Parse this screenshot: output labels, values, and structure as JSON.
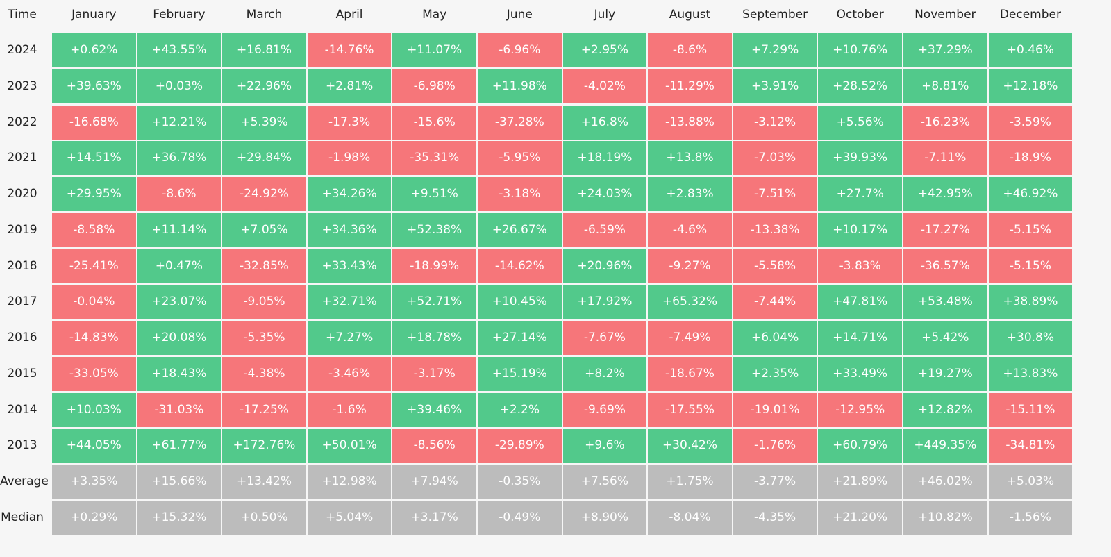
{
  "table": {
    "columns": [
      "Time",
      "January",
      "February",
      "March",
      "April",
      "May",
      "June",
      "July",
      "August",
      "September",
      "October",
      "November",
      "December"
    ],
    "colors": {
      "positive": "#52c98b",
      "negative": "#f6767a",
      "summary": "#bcbcbc"
    },
    "rows": [
      {
        "label": "2024",
        "cells": [
          "+0.62%",
          "+43.55%",
          "+16.81%",
          "-14.76%",
          "+11.07%",
          "-6.96%",
          "+2.95%",
          "-8.6%",
          "+7.29%",
          "+10.76%",
          "+37.29%",
          "+0.46%"
        ]
      },
      {
        "label": "2023",
        "cells": [
          "+39.63%",
          "+0.03%",
          "+22.96%",
          "+2.81%",
          "-6.98%",
          "+11.98%",
          "-4.02%",
          "-11.29%",
          "+3.91%",
          "+28.52%",
          "+8.81%",
          "+12.18%"
        ]
      },
      {
        "label": "2022",
        "cells": [
          "-16.68%",
          "+12.21%",
          "+5.39%",
          "-17.3%",
          "-15.6%",
          "-37.28%",
          "+16.8%",
          "-13.88%",
          "-3.12%",
          "+5.56%",
          "-16.23%",
          "-3.59%"
        ]
      },
      {
        "label": "2021",
        "cells": [
          "+14.51%",
          "+36.78%",
          "+29.84%",
          "-1.98%",
          "-35.31%",
          "-5.95%",
          "+18.19%",
          "+13.8%",
          "-7.03%",
          "+39.93%",
          "-7.11%",
          "-18.9%"
        ]
      },
      {
        "label": "2020",
        "cells": [
          "+29.95%",
          "-8.6%",
          "-24.92%",
          "+34.26%",
          "+9.51%",
          "-3.18%",
          "+24.03%",
          "+2.83%",
          "-7.51%",
          "+27.7%",
          "+42.95%",
          "+46.92%"
        ]
      },
      {
        "label": "2019",
        "cells": [
          "-8.58%",
          "+11.14%",
          "+7.05%",
          "+34.36%",
          "+52.38%",
          "+26.67%",
          "-6.59%",
          "-4.6%",
          "-13.38%",
          "+10.17%",
          "-17.27%",
          "-5.15%"
        ]
      },
      {
        "label": "2018",
        "cells": [
          "-25.41%",
          "+0.47%",
          "-32.85%",
          "+33.43%",
          "-18.99%",
          "-14.62%",
          "+20.96%",
          "-9.27%",
          "-5.58%",
          "-3.83%",
          "-36.57%",
          "-5.15%"
        ]
      },
      {
        "label": "2017",
        "cells": [
          "-0.04%",
          "+23.07%",
          "-9.05%",
          "+32.71%",
          "+52.71%",
          "+10.45%",
          "+17.92%",
          "+65.32%",
          "-7.44%",
          "+47.81%",
          "+53.48%",
          "+38.89%"
        ]
      },
      {
        "label": "2016",
        "cells": [
          "-14.83%",
          "+20.08%",
          "-5.35%",
          "+7.27%",
          "+18.78%",
          "+27.14%",
          "-7.67%",
          "-7.49%",
          "+6.04%",
          "+14.71%",
          "+5.42%",
          "+30.8%"
        ]
      },
      {
        "label": "2015",
        "cells": [
          "-33.05%",
          "+18.43%",
          "-4.38%",
          "-3.46%",
          "-3.17%",
          "+15.19%",
          "+8.2%",
          "-18.67%",
          "+2.35%",
          "+33.49%",
          "+19.27%",
          "+13.83%"
        ]
      },
      {
        "label": "2014",
        "cells": [
          "+10.03%",
          "-31.03%",
          "-17.25%",
          "-1.6%",
          "+39.46%",
          "+2.2%",
          "-9.69%",
          "-17.55%",
          "-19.01%",
          "-12.95%",
          "+12.82%",
          "-15.11%"
        ]
      },
      {
        "label": "2013",
        "cells": [
          "+44.05%",
          "+61.77%",
          "+172.76%",
          "+50.01%",
          "-8.56%",
          "-29.89%",
          "+9.6%",
          "+30.42%",
          "-1.76%",
          "+60.79%",
          "+449.35%",
          "-34.81%"
        ]
      }
    ],
    "summary_rows": [
      {
        "label": "Average",
        "cells": [
          "+3.35%",
          "+15.66%",
          "+13.42%",
          "+12.98%",
          "+7.94%",
          "-0.35%",
          "+7.56%",
          "+1.75%",
          "-3.77%",
          "+21.89%",
          "+46.02%",
          "+5.03%"
        ]
      },
      {
        "label": "Median",
        "cells": [
          "+0.29%",
          "+15.32%",
          "+0.50%",
          "+5.04%",
          "+3.17%",
          "-0.49%",
          "+8.90%",
          "-8.04%",
          "-4.35%",
          "+21.20%",
          "+10.82%",
          "-1.56%"
        ]
      }
    ]
  }
}
